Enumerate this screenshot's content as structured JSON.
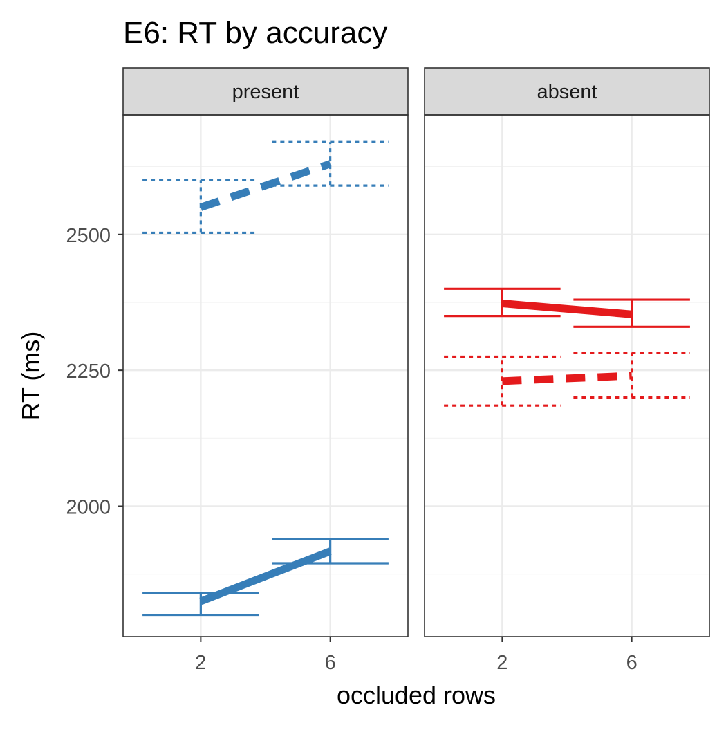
{
  "chart_data": {
    "type": "line",
    "title": "E6: RT by accuracy",
    "xlabel": "occluded rows",
    "ylabel": "RT (ms)",
    "x_ticks": [
      "2",
      "6"
    ],
    "y_ticks": [
      2000,
      2250,
      2500
    ],
    "ylim": [
      1760,
      2720
    ],
    "panels": [
      {
        "label": "present",
        "color": "#377EB8",
        "series": [
          {
            "line_style": "dashed",
            "points": [
              {
                "x": "2",
                "y": 2550,
                "ymin": 2503,
                "ymax": 2600
              },
              {
                "x": "6",
                "y": 2630,
                "ymin": 2590,
                "ymax": 2670
              }
            ]
          },
          {
            "line_style": "solid",
            "points": [
              {
                "x": "2",
                "y": 1825,
                "ymin": 1800,
                "ymax": 1840
              },
              {
                "x": "6",
                "y": 1917,
                "ymin": 1895,
                "ymax": 1940
              }
            ]
          }
        ]
      },
      {
        "label": "absent",
        "color": "#E41A1C",
        "series": [
          {
            "line_style": "solid",
            "points": [
              {
                "x": "2",
                "y": 2373,
                "ymin": 2350,
                "ymax": 2400
              },
              {
                "x": "6",
                "y": 2353,
                "ymin": 2330,
                "ymax": 2380
              }
            ]
          },
          {
            "line_style": "dashed",
            "points": [
              {
                "x": "2",
                "y": 2230,
                "ymin": 2185,
                "ymax": 2275
              },
              {
                "x": "6",
                "y": 2240,
                "ymin": 2200,
                "ymax": 2282
              }
            ]
          }
        ]
      }
    ]
  }
}
